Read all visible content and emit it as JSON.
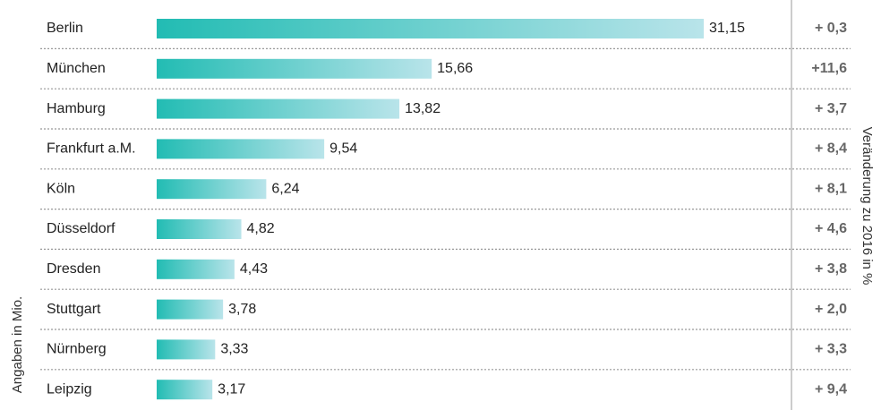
{
  "chart_data": {
    "type": "bar",
    "orientation": "horizontal",
    "y_label": "Angaben in Mio.",
    "y2_label": "Veränderung zu 2016 in %",
    "categories": [
      "Berlin",
      "München",
      "Hamburg",
      "Frankfurt a.M.",
      "Köln",
      "Düsseldorf",
      "Dresden",
      "Stuttgart",
      "Nürnberg",
      "Leipzig"
    ],
    "values": [
      31.15,
      15.66,
      13.82,
      9.54,
      6.24,
      4.82,
      4.43,
      3.78,
      3.33,
      3.17
    ],
    "value_labels": [
      "31,15",
      "15,66",
      "13,82",
      "9,54",
      "6,24",
      "4,82",
      "4,43",
      "3,78",
      "3,33",
      "3,17"
    ],
    "changes": [
      0.3,
      11.6,
      3.7,
      8.4,
      8.1,
      4.6,
      3.8,
      2.0,
      3.3,
      9.4
    ],
    "change_labels": [
      "+ 0,3",
      "+11,6",
      "+ 3,7",
      "+ 8,4",
      "+ 8,1",
      "+ 4,6",
      "+ 3,8",
      "+ 2,0",
      "+ 3,3",
      "+ 9,4"
    ],
    "color": "#22bcb3",
    "color_end": "#b9e4ea"
  }
}
